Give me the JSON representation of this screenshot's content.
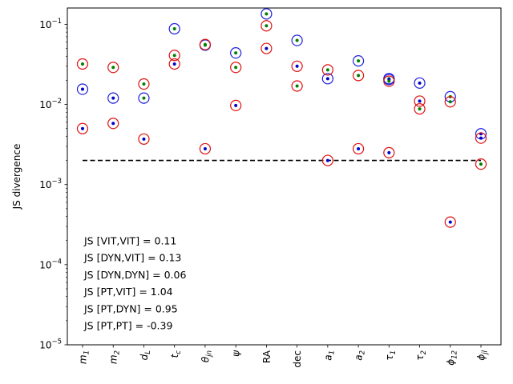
{
  "chart_data": {
    "type": "scatter",
    "ylabel": "JS divergence",
    "yscale": "log",
    "ylim": [
      1e-05,
      0.16
    ],
    "y_ticks": [
      {
        "value": 0.1,
        "base": "10",
        "exp": "−1"
      },
      {
        "value": 0.01,
        "base": "10",
        "exp": "−2"
      },
      {
        "value": 0.001,
        "base": "10",
        "exp": "−3"
      },
      {
        "value": 0.0001,
        "base": "10",
        "exp": "−4"
      },
      {
        "value": 1e-05,
        "base": "10",
        "exp": "−5"
      }
    ],
    "categories": [
      {
        "base": "m",
        "sub": "1",
        "italic": true
      },
      {
        "base": "m",
        "sub": "2",
        "italic": true
      },
      {
        "base": "d",
        "sub": "L",
        "italic": true
      },
      {
        "base": "t",
        "sub": "c",
        "italic": true
      },
      {
        "base": "θ",
        "sub": "jn",
        "italic": true
      },
      {
        "base": "ψ",
        "sub": "",
        "italic": true
      },
      {
        "base": "RA",
        "sub": "",
        "italic": false
      },
      {
        "base": "dec",
        "sub": "",
        "italic": false
      },
      {
        "base": "a",
        "sub": "1",
        "italic": true
      },
      {
        "base": "a",
        "sub": "2",
        "italic": true
      },
      {
        "base": "τ",
        "sub": "1",
        "italic": true
      },
      {
        "base": "τ",
        "sub": "2",
        "italic": true
      },
      {
        "base": "ϕ",
        "sub": "12",
        "italic": true
      },
      {
        "base": "ϕ",
        "sub": "jl",
        "italic": true
      }
    ],
    "threshold": 0.002,
    "series": [
      {
        "ring": "#1f1fdc",
        "dot": "#008000",
        "values": [
          null,
          null,
          0.012,
          0.088,
          0.055,
          0.044,
          0.135,
          0.063,
          null,
          0.035,
          0.021,
          null,
          0.0125,
          null
        ]
      },
      {
        "ring": "#1f1fdc",
        "dot": "#0000cc",
        "values": [
          0.0155,
          0.012,
          null,
          null,
          null,
          null,
          null,
          null,
          0.021,
          null,
          0.0205,
          0.0185,
          null,
          0.0043
        ]
      },
      {
        "ring": "#e01010",
        "dot": "#008000",
        "values": [
          0.032,
          0.029,
          0.018,
          0.041,
          0.056,
          0.029,
          0.096,
          0.017,
          0.027,
          0.023,
          0.0195,
          0.0088,
          0.0108,
          0.0018
        ]
      },
      {
        "ring": "#e01010",
        "dot": "#0000cc",
        "values": [
          0.005,
          0.0058,
          0.0037,
          0.032,
          0.0028,
          0.0097,
          0.05,
          0.03,
          0.002,
          0.0028,
          0.0025,
          0.011,
          0.00034,
          0.0038
        ]
      }
    ],
    "annotations": [
      "JS [VIT,VIT] = 0.11",
      "JS [DYN,VIT] = 0.13",
      "JS [DYN,DYN] = 0.06",
      "JS [PT,VIT] = 1.04",
      "JS [PT,DYN] = 0.95",
      "JS [PT,PT] = -0.39"
    ]
  }
}
